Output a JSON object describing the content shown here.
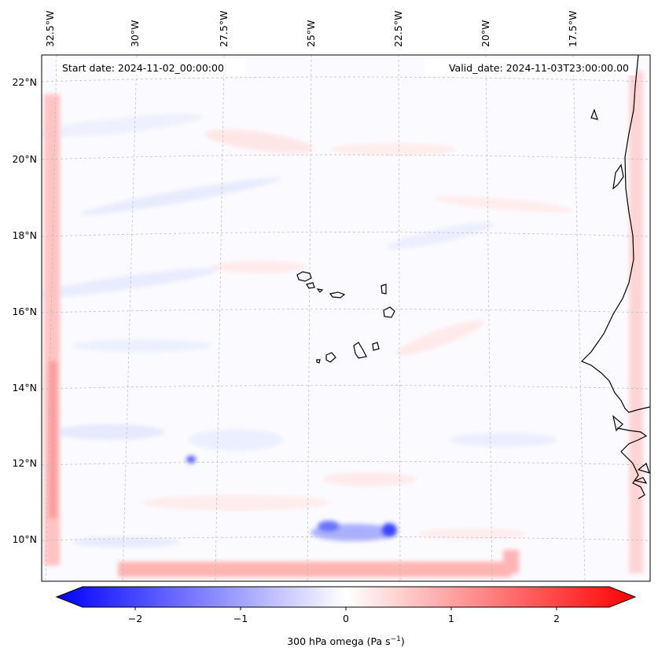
{
  "header": {
    "start_date": "Start date: 2024-11-02_00:00:00",
    "valid_date": "Valid_date: 2024-11-03T23:00:00.00"
  },
  "lon_labels": [
    "32.5°W",
    "30°W",
    "27.5°W",
    "25°W",
    "22.5°W",
    "20°W",
    "17.5°W"
  ],
  "lat_labels": [
    "22°N",
    "20°N",
    "18°N",
    "16°N",
    "14°N",
    "12°N",
    "10°N"
  ],
  "colorbar": {
    "ticks": [
      "−2",
      "−1",
      "0",
      "1",
      "2"
    ],
    "tick_values": [
      -2,
      -1,
      0,
      1,
      2
    ],
    "range": [
      -2.5,
      2.5
    ],
    "label": "300 hPa omega (Pa s",
    "label_exp": "−1",
    "label_close": ")",
    "colors": {
      "low": "#0000ff",
      "mid": "#ffffff",
      "high": "#ff0000"
    }
  },
  "map": {
    "projection": "Lambert conformal",
    "gridlines": true,
    "coastline_color": "#000000"
  }
}
